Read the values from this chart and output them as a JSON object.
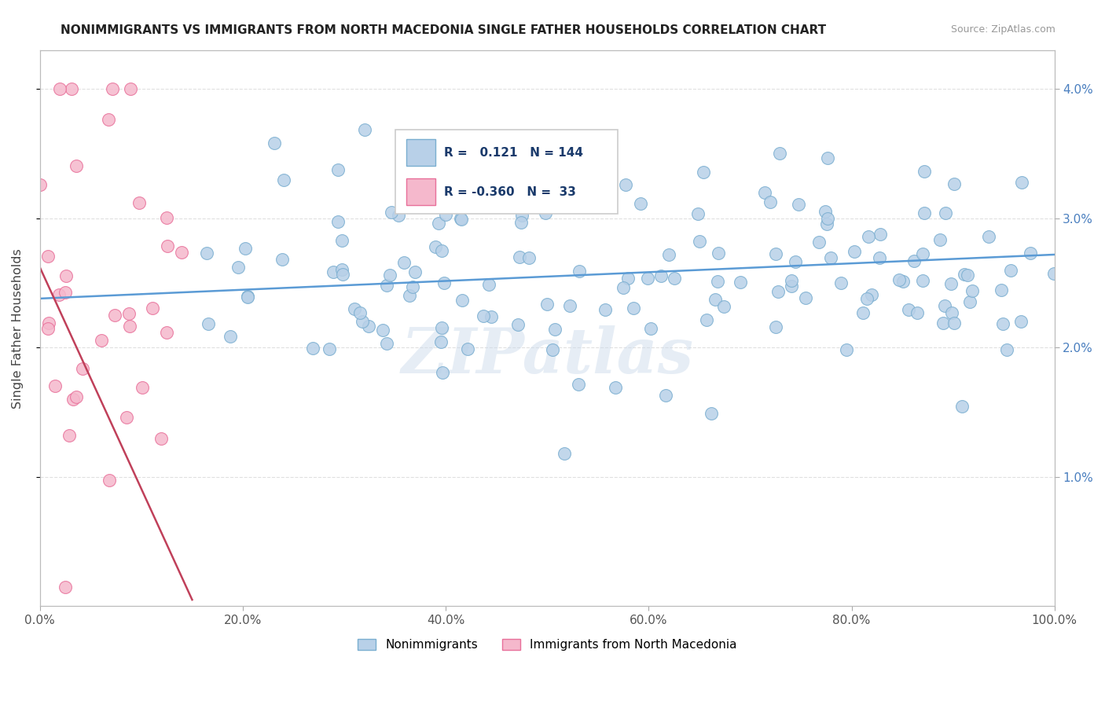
{
  "title": "NONIMMIGRANTS VS IMMIGRANTS FROM NORTH MACEDONIA SINGLE FATHER HOUSEHOLDS CORRELATION CHART",
  "source": "Source: ZipAtlas.com",
  "ylabel": "Single Father Households",
  "x_tick_labels": [
    "0.0%",
    "20.0%",
    "40.0%",
    "60.0%",
    "80.0%",
    "100.0%"
  ],
  "x_tick_values": [
    0,
    20,
    40,
    60,
    80,
    100
  ],
  "y_tick_labels": [
    "1.0%",
    "2.0%",
    "3.0%",
    "4.0%"
  ],
  "y_tick_values": [
    1.0,
    2.0,
    3.0,
    4.0
  ],
  "y_min": 0.0,
  "y_max": 4.3,
  "x_min": 0,
  "x_max": 100,
  "blue_R": 0.121,
  "blue_N": 144,
  "pink_R": -0.36,
  "pink_N": 33,
  "blue_dot_color": "#b8d0e8",
  "blue_dot_edge": "#7aaed0",
  "pink_dot_color": "#f5b8cc",
  "pink_dot_edge": "#e8709a",
  "blue_line_color": "#5b9bd5",
  "pink_line_color": "#c0405a",
  "title_color": "#222222",
  "source_color": "#999999",
  "axis_color": "#bbbbbb",
  "grid_color": "#e0e0e0",
  "tick_color": "#4a7fbf",
  "legend_label_blue": "Nonimmigrants",
  "legend_label_pink": "Immigrants from North Macedonia",
  "R_label_color": "#1a3a6b",
  "watermark": "ZIPatlas",
  "blue_line_y_at_0": 2.38,
  "blue_line_y_at_100": 2.72,
  "pink_line_y_at_0": 2.62,
  "pink_line_y_at_15": 0.05
}
